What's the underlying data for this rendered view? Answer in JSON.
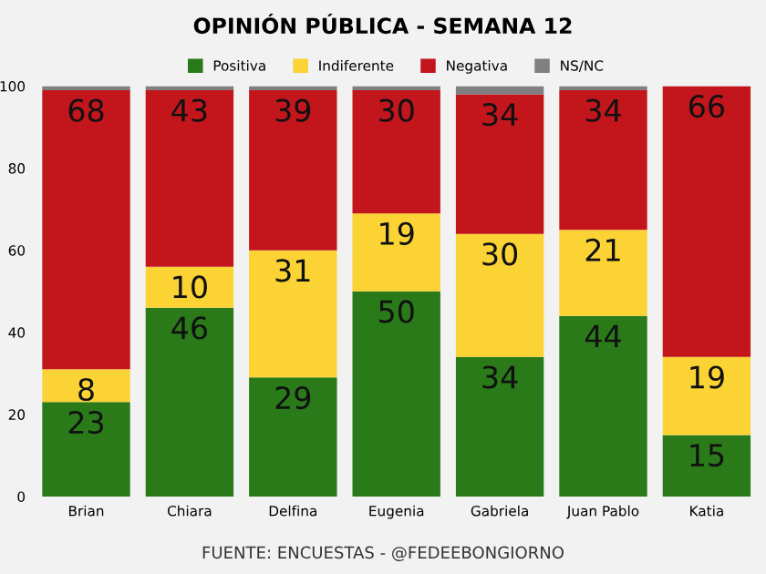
{
  "chart_data": {
    "type": "bar",
    "stacked": true,
    "title": "OPINIÓN PÚBLICA - SEMANA 12",
    "categories": [
      "Brian",
      "Chiara",
      "Delfina",
      "Eugenia",
      "Gabriela",
      "Juan Pablo",
      "Katia"
    ],
    "series": [
      {
        "name": "Positiva",
        "color": "#2a7a1a",
        "values": [
          23,
          46,
          29,
          50,
          34,
          44,
          15
        ],
        "value_labels": [
          "23",
          "46",
          "29",
          "50",
          "34",
          "44",
          "15"
        ]
      },
      {
        "name": "Indiferente",
        "color": "#fbd335",
        "values": [
          8,
          10,
          31,
          19,
          30,
          21,
          19
        ],
        "value_labels": [
          "8",
          "10",
          "31",
          "19",
          "30",
          "21",
          "19"
        ]
      },
      {
        "name": "Negativa",
        "color": "#c3161c",
        "values": [
          68,
          43,
          39,
          30,
          34,
          34,
          66
        ],
        "value_labels": [
          "68",
          "43",
          "39",
          "30",
          "34",
          "34",
          "66"
        ]
      },
      {
        "name": "NS/NC",
        "color": "#808080",
        "values": [
          1,
          1,
          1,
          1,
          2,
          1,
          0
        ]
      }
    ],
    "ylim": [
      0,
      100
    ],
    "yticks": [
      0,
      20,
      40,
      60,
      80,
      100
    ],
    "legend": "top",
    "grid": false,
    "annotations": [
      "FUENTE: ENCUESTAS - @FEDEEBONGIORNO"
    ]
  }
}
